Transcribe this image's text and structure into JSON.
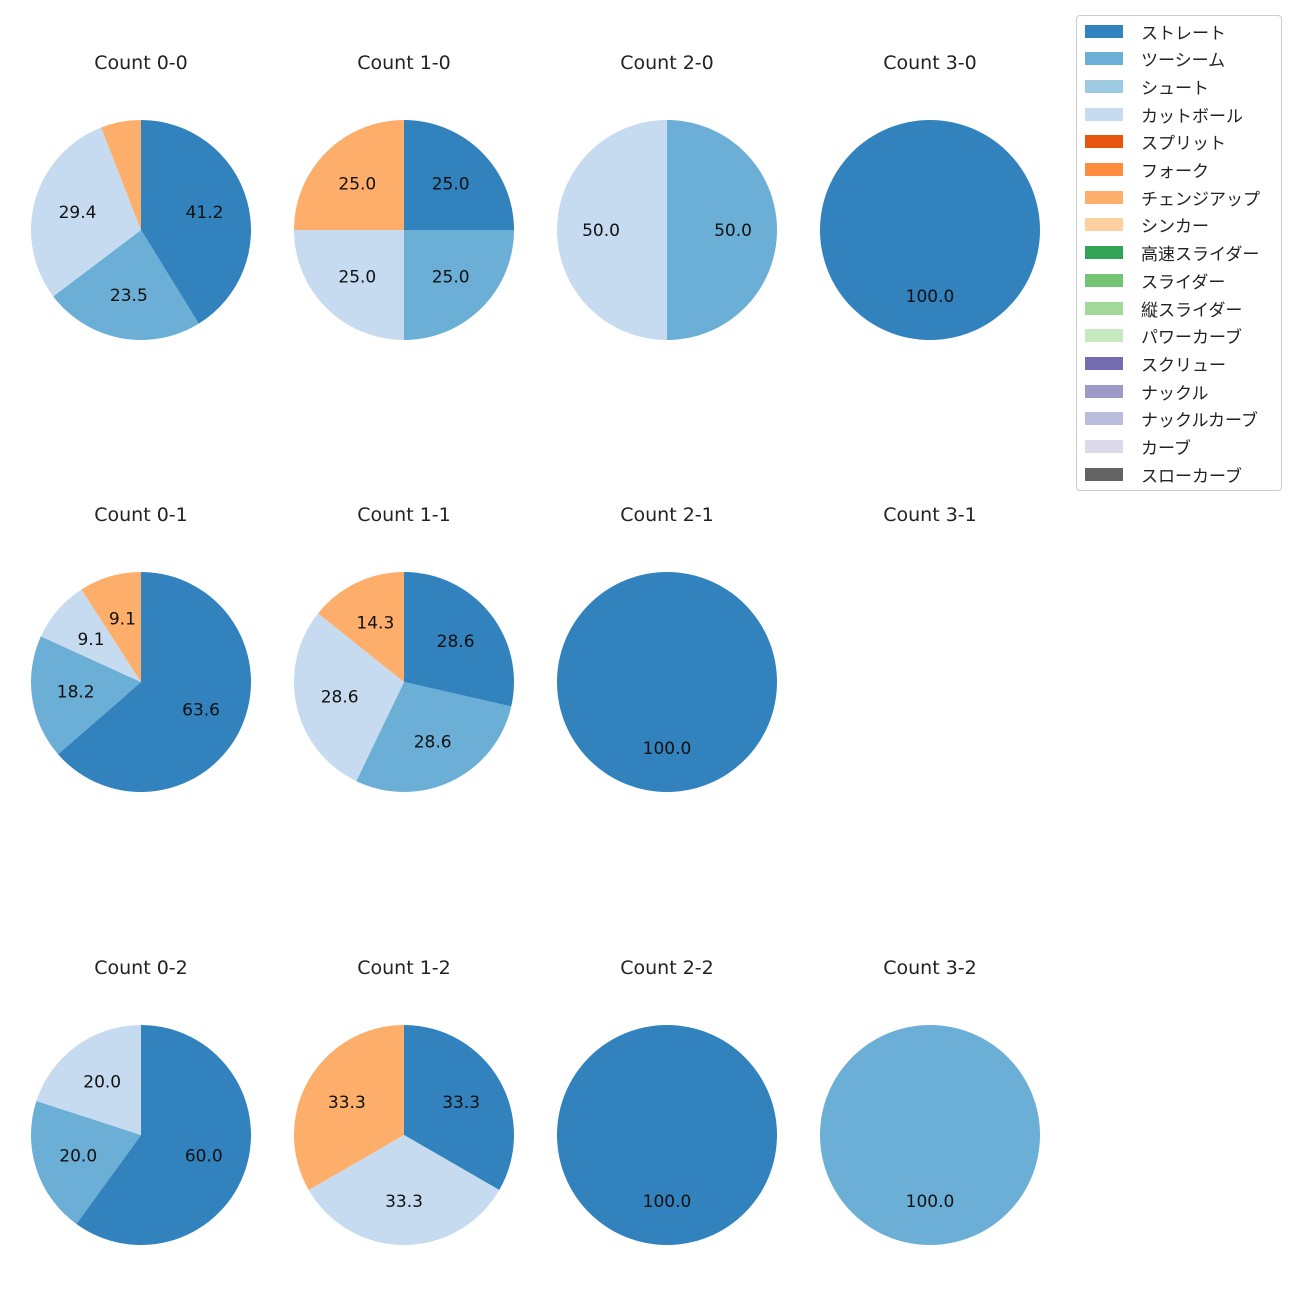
{
  "chart_data": {
    "type": "pie",
    "legend_placement": "top-right",
    "pitch_types": [
      {
        "name": "ストレート",
        "color": "#3182bd"
      },
      {
        "name": "ツーシーム",
        "color": "#6baed6"
      },
      {
        "name": "シュート",
        "color": "#9ecae1"
      },
      {
        "name": "カットボール",
        "color": "#c6dbef"
      },
      {
        "name": "スプリット",
        "color": "#e6550d"
      },
      {
        "name": "フォーク",
        "color": "#fd8d3c"
      },
      {
        "name": "チェンジアップ",
        "color": "#fdae6b"
      },
      {
        "name": "シンカー",
        "color": "#fdd0a2"
      },
      {
        "name": "高速スライダー",
        "color": "#31a354"
      },
      {
        "name": "スライダー",
        "color": "#74c476"
      },
      {
        "name": "縦スライダー",
        "color": "#a1d99b"
      },
      {
        "name": "パワーカーブ",
        "color": "#c7e9c0"
      },
      {
        "name": "スクリュー",
        "color": "#756bb1"
      },
      {
        "name": "ナックル",
        "color": "#9e9ac8"
      },
      {
        "name": "ナックルカーブ",
        "color": "#bcbddc"
      },
      {
        "name": "カーブ",
        "color": "#dadaeb"
      },
      {
        "name": "スローカーブ",
        "color": "#636363"
      }
    ],
    "charts": [
      {
        "title": "Count 0-0",
        "slices": [
          {
            "pitch": "ストレート",
            "value": 41.2,
            "label": "41.2"
          },
          {
            "pitch": "ツーシーム",
            "value": 23.5,
            "label": "23.5"
          },
          {
            "pitch": "カットボール",
            "value": 29.4,
            "label": "29.4"
          },
          {
            "pitch": "チェンジアップ",
            "value": 5.9,
            "label": ""
          }
        ]
      },
      {
        "title": "Count 1-0",
        "slices": [
          {
            "pitch": "ストレート",
            "value": 25.0,
            "label": "25.0"
          },
          {
            "pitch": "ツーシーム",
            "value": 25.0,
            "label": "25.0"
          },
          {
            "pitch": "カットボール",
            "value": 25.0,
            "label": "25.0"
          },
          {
            "pitch": "チェンジアップ",
            "value": 25.0,
            "label": "25.0"
          }
        ]
      },
      {
        "title": "Count 2-0",
        "slices": [
          {
            "pitch": "ツーシーム",
            "value": 50.0,
            "label": "50.0"
          },
          {
            "pitch": "カットボール",
            "value": 50.0,
            "label": "50.0"
          }
        ]
      },
      {
        "title": "Count 3-0",
        "slices": [
          {
            "pitch": "ストレート",
            "value": 100.0,
            "label": "100.0"
          }
        ]
      },
      {
        "title": "Count 0-1",
        "slices": [
          {
            "pitch": "ストレート",
            "value": 63.6,
            "label": "63.6"
          },
          {
            "pitch": "ツーシーム",
            "value": 18.2,
            "label": "18.2"
          },
          {
            "pitch": "カットボール",
            "value": 9.1,
            "label": "9.1"
          },
          {
            "pitch": "チェンジアップ",
            "value": 9.1,
            "label": "9.1"
          }
        ]
      },
      {
        "title": "Count 1-1",
        "slices": [
          {
            "pitch": "ストレート",
            "value": 28.6,
            "label": "28.6"
          },
          {
            "pitch": "ツーシーム",
            "value": 28.6,
            "label": "28.6"
          },
          {
            "pitch": "カットボール",
            "value": 28.6,
            "label": "28.6"
          },
          {
            "pitch": "チェンジアップ",
            "value": 14.3,
            "label": "14.3"
          }
        ]
      },
      {
        "title": "Count 2-1",
        "slices": [
          {
            "pitch": "ストレート",
            "value": 100.0,
            "label": "100.0"
          }
        ]
      },
      {
        "title": "Count 3-1",
        "slices": []
      },
      {
        "title": "Count 0-2",
        "slices": [
          {
            "pitch": "ストレート",
            "value": 60.0,
            "label": "60.0"
          },
          {
            "pitch": "ツーシーム",
            "value": 20.0,
            "label": "20.0"
          },
          {
            "pitch": "カットボール",
            "value": 20.0,
            "label": "20.0"
          }
        ]
      },
      {
        "title": "Count 1-2",
        "slices": [
          {
            "pitch": "ストレート",
            "value": 33.3,
            "label": "33.3"
          },
          {
            "pitch": "カットボール",
            "value": 33.3,
            "label": "33.3"
          },
          {
            "pitch": "チェンジアップ",
            "value": 33.3,
            "label": "33.3"
          }
        ]
      },
      {
        "title": "Count 2-2",
        "slices": [
          {
            "pitch": "ストレート",
            "value": 100.0,
            "label": "100.0"
          }
        ]
      },
      {
        "title": "Count 3-2",
        "slices": [
          {
            "pitch": "ツーシーム",
            "value": 100.0,
            "label": "100.0"
          }
        ]
      }
    ]
  }
}
